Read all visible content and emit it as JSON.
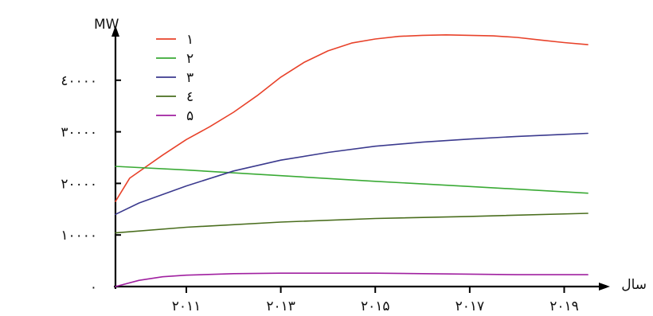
{
  "chart_data": {
    "type": "line",
    "title": "",
    "ylabel": "MW",
    "xlabel": "سال",
    "xlim": [
      2009.5,
      2019.7
    ],
    "ylim": [
      0,
      50000
    ],
    "x_ticks": [
      {
        "value": 2011,
        "label": "۲۰۱۱"
      },
      {
        "value": 2013,
        "label": "۲۰۱۳"
      },
      {
        "value": 2015,
        "label": "۲۰۱۵"
      },
      {
        "value": 2017,
        "label": "۲۰۱۷"
      },
      {
        "value": 2019,
        "label": "۲۰۱۹"
      }
    ],
    "y_ticks": [
      {
        "value": 0,
        "label": "۰"
      },
      {
        "value": 10000,
        "label": "۱۰۰۰۰"
      },
      {
        "value": 20000,
        "label": "۲۰۰۰۰"
      },
      {
        "value": 30000,
        "label": "۳۰۰۰۰"
      },
      {
        "value": 40000,
        "label": "٤۰۰۰۰"
      }
    ],
    "grid": false,
    "legend_position": "top-left",
    "series": [
      {
        "name": "۱",
        "color": "#e8422a",
        "x": [
          2009.5,
          2009.8,
          2010.5,
          2011.0,
          2011.5,
          2012.0,
          2012.5,
          2013.0,
          2013.5,
          2014.0,
          2014.5,
          2015.0,
          2015.5,
          2016.0,
          2016.5,
          2017.0,
          2017.5,
          2018.0,
          2018.5,
          2019.0,
          2019.5
        ],
        "values": [
          16500,
          21000,
          25500,
          28500,
          31000,
          33800,
          37000,
          40600,
          43500,
          45700,
          47200,
          48000,
          48500,
          48700,
          48800,
          48700,
          48600,
          48300,
          47800,
          47300,
          46900
        ]
      },
      {
        "name": "۲",
        "color": "#3aaa35",
        "x": [
          2009.5,
          2011.0,
          2013.0,
          2015.0,
          2017.0,
          2019.5
        ],
        "values": [
          23300,
          22600,
          21500,
          20400,
          19400,
          18100
        ]
      },
      {
        "name": "۳",
        "color": "#3b3a8e",
        "x": [
          2009.5,
          2010.0,
          2011.0,
          2012.0,
          2013.0,
          2014.0,
          2015.0,
          2016.0,
          2017.0,
          2018.0,
          2019.0,
          2019.5
        ],
        "values": [
          14000,
          16200,
          19500,
          22400,
          24500,
          26000,
          27200,
          28000,
          28600,
          29100,
          29500,
          29700
        ]
      },
      {
        "name": "٤",
        "color": "#4a6e1e",
        "x": [
          2009.5,
          2011.0,
          2013.0,
          2015.0,
          2017.0,
          2019.5
        ],
        "values": [
          10400,
          11500,
          12500,
          13200,
          13600,
          14200
        ]
      },
      {
        "name": "۵",
        "color": "#a020a0",
        "x": [
          2009.5,
          2010.0,
          2010.5,
          2011.0,
          2012.0,
          2013.0,
          2014.0,
          2015.0,
          2016.0,
          2017.0,
          2018.0,
          2019.0,
          2019.5
        ],
        "values": [
          0,
          1200,
          1900,
          2200,
          2500,
          2600,
          2600,
          2600,
          2500,
          2400,
          2300,
          2300,
          2300
        ]
      }
    ]
  }
}
